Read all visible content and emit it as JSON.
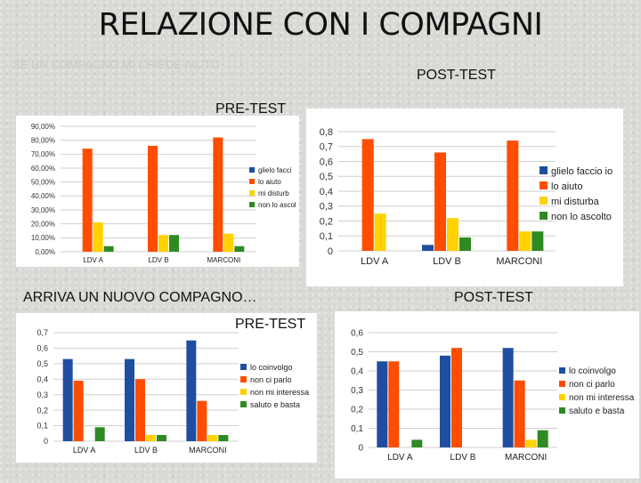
{
  "slide": {
    "title": "RELAZIONE CON I COMPAGNI",
    "faded_question": "SE UN COMPAGNO MI CHIEDE AIUTO",
    "labels": {
      "posttest_top": "POST-TEST",
      "pretest_top": "PRE-TEST",
      "section2": "ARRIVA UN NUOVO COMPAGNO…",
      "posttest_bottom": "POST-TEST",
      "pretest_bottom": "PRE-TEST"
    }
  },
  "chart_data": [
    {
      "id": "aiuto-pre",
      "type": "bar",
      "categories": [
        "LDV A",
        "LDV B",
        "MARCONI"
      ],
      "ylim": [
        0,
        90
      ],
      "yticks": [
        "0,00%",
        "10,00%",
        "20,00%",
        "30,00%",
        "40,00%",
        "50,00%",
        "60,00%",
        "70,00%",
        "80,00%",
        "90,00%"
      ],
      "colors": [
        "#1f4ea1",
        "#ff4d00",
        "#ffd200",
        "#2f8a24"
      ],
      "series": [
        {
          "name": "glielo facci",
          "values": [
            0,
            0,
            0
          ]
        },
        {
          "name": "lo aiuto",
          "values": [
            74,
            76,
            82
          ]
        },
        {
          "name": "mi disturb",
          "values": [
            21,
            12,
            13
          ]
        },
        {
          "name": "non lo ascol",
          "values": [
            4,
            12,
            4
          ]
        }
      ]
    },
    {
      "id": "aiuto-post",
      "type": "bar",
      "categories": [
        "LDV A",
        "LDV B",
        "MARCONI"
      ],
      "ylim": [
        0,
        0.8
      ],
      "yticks": [
        "0",
        "0,1",
        "0,2",
        "0,3",
        "0,4",
        "0,5",
        "0,6",
        "0,7",
        "0,8"
      ],
      "colors": [
        "#1f4ea1",
        "#ff4d00",
        "#ffd200",
        "#2f8a24"
      ],
      "series": [
        {
          "name": "glielo faccio io",
          "values": [
            0,
            0.04,
            0
          ]
        },
        {
          "name": "lo aiuto",
          "values": [
            0.75,
            0.66,
            0.74
          ]
        },
        {
          "name": "mi disturba",
          "values": [
            0.25,
            0.22,
            0.13
          ]
        },
        {
          "name": "non lo ascolto",
          "values": [
            0,
            0.09,
            0.13
          ]
        }
      ]
    },
    {
      "id": "compagno-pre",
      "type": "bar",
      "categories": [
        "LDV A",
        "LDV B",
        "MARCONI"
      ],
      "ylim": [
        0,
        0.7
      ],
      "yticks": [
        "0",
        "0,1",
        "0,2",
        "0,3",
        "0,4",
        "0,5",
        "0,6",
        "0,7"
      ],
      "colors": [
        "#1f4ea1",
        "#ff4d00",
        "#ffd200",
        "#2f8a24"
      ],
      "series": [
        {
          "name": "lo coinvolgo",
          "values": [
            0.53,
            0.53,
            0.65
          ]
        },
        {
          "name": "non ci parlo",
          "values": [
            0.39,
            0.4,
            0.26
          ]
        },
        {
          "name": "non mi interessa",
          "values": [
            0,
            0.04,
            0.04
          ]
        },
        {
          "name": "saluto e basta",
          "values": [
            0.09,
            0.04,
            0.04
          ]
        }
      ]
    },
    {
      "id": "compagno-post",
      "type": "bar",
      "categories": [
        "LDV A",
        "LDV B",
        "MARCONI"
      ],
      "ylim": [
        0,
        0.6
      ],
      "yticks": [
        "0",
        "0,1",
        "0,2",
        "0,3",
        "0,4",
        "0,5",
        "0,6"
      ],
      "colors": [
        "#1f4ea1",
        "#ff4d00",
        "#ffd200",
        "#2f8a24"
      ],
      "series": [
        {
          "name": "lo coinvolgo",
          "values": [
            0.45,
            0.48,
            0.52
          ]
        },
        {
          "name": "non ci parlo",
          "values": [
            0.45,
            0.52,
            0.35
          ]
        },
        {
          "name": "non mi interessa",
          "values": [
            0,
            0,
            0.04
          ]
        },
        {
          "name": "saluto e basta",
          "values": [
            0.04,
            0,
            0.09
          ]
        }
      ]
    }
  ]
}
